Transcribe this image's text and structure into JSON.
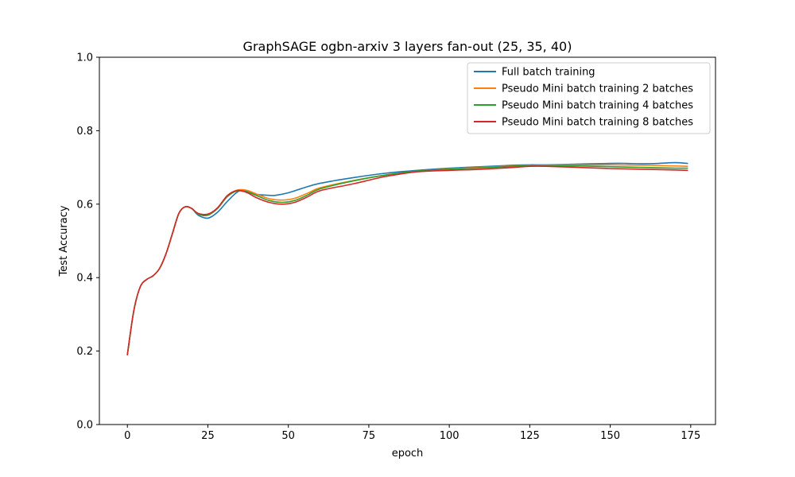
{
  "chart_data": {
    "type": "line",
    "title": "GraphSAGE ogbn-arxiv 3 layers fan-out (25, 35, 40)",
    "xlabel": "epoch",
    "ylabel": "Test Accuracy",
    "xlim": [
      -8.7,
      182.7
    ],
    "ylim": [
      0,
      1.0
    ],
    "xticks": [
      0,
      25,
      50,
      75,
      100,
      125,
      150,
      175
    ],
    "yticks": [
      0.0,
      0.2,
      0.4,
      0.6,
      0.8,
      1.0
    ],
    "xtick_labels": [
      "0",
      "25",
      "50",
      "75",
      "100",
      "125",
      "150",
      "175"
    ],
    "ytick_labels": [
      "0.0",
      "0.2",
      "0.4",
      "0.6",
      "0.8",
      "1.0"
    ],
    "grid": false,
    "legend_position": "upper right",
    "series": [
      {
        "name": "Full batch training",
        "color": "#1f77b4",
        "x": [
          0,
          2,
          4,
          6,
          8,
          10,
          12,
          14,
          16,
          18,
          20,
          22,
          25,
          28,
          31,
          34,
          36,
          40,
          44,
          46,
          50,
          55,
          60,
          70,
          80,
          90,
          100,
          110,
          120,
          125,
          130,
          140,
          150,
          155,
          160,
          165,
          170,
          174
        ],
        "y": [
          0.19,
          0.31,
          0.375,
          0.395,
          0.405,
          0.425,
          0.465,
          0.52,
          0.575,
          0.593,
          0.588,
          0.57,
          0.562,
          0.578,
          0.607,
          0.632,
          0.637,
          0.627,
          0.624,
          0.624,
          0.631,
          0.645,
          0.657,
          0.672,
          0.684,
          0.692,
          0.698,
          0.702,
          0.706,
          0.707,
          0.707,
          0.709,
          0.711,
          0.711,
          0.71,
          0.711,
          0.713,
          0.711
        ]
      },
      {
        "name": "Pseudo Mini batch training 2 batches",
        "color": "#ff7f0e",
        "x": [
          0,
          2,
          4,
          6,
          8,
          10,
          12,
          14,
          16,
          18,
          20,
          22,
          25,
          28,
          31,
          34,
          37,
          40,
          44,
          48,
          52,
          56,
          60,
          70,
          80,
          90,
          100,
          110,
          120,
          125,
          130,
          140,
          150,
          160,
          170,
          174
        ],
        "y": [
          0.19,
          0.31,
          0.375,
          0.395,
          0.405,
          0.425,
          0.465,
          0.52,
          0.575,
          0.593,
          0.588,
          0.573,
          0.57,
          0.59,
          0.622,
          0.638,
          0.638,
          0.628,
          0.615,
          0.611,
          0.616,
          0.63,
          0.645,
          0.664,
          0.679,
          0.689,
          0.696,
          0.7,
          0.704,
          0.705,
          0.706,
          0.707,
          0.707,
          0.706,
          0.704,
          0.703
        ]
      },
      {
        "name": "Pseudo Mini batch training 4 batches",
        "color": "#2ca02c",
        "x": [
          0,
          2,
          4,
          6,
          8,
          10,
          12,
          14,
          16,
          18,
          20,
          22,
          25,
          28,
          31,
          34,
          37,
          40,
          44,
          48,
          52,
          56,
          60,
          70,
          80,
          90,
          100,
          110,
          120,
          125,
          130,
          140,
          150,
          160,
          170,
          174
        ],
        "y": [
          0.19,
          0.31,
          0.375,
          0.395,
          0.405,
          0.425,
          0.465,
          0.52,
          0.575,
          0.593,
          0.588,
          0.573,
          0.57,
          0.588,
          0.62,
          0.636,
          0.634,
          0.624,
          0.61,
          0.605,
          0.61,
          0.625,
          0.642,
          0.663,
          0.679,
          0.69,
          0.695,
          0.699,
          0.703,
          0.704,
          0.705,
          0.704,
          0.702,
          0.7,
          0.698,
          0.698
        ]
      },
      {
        "name": "Pseudo Mini batch training 8 batches",
        "color": "#d62728",
        "x": [
          0,
          2,
          4,
          6,
          8,
          10,
          12,
          14,
          16,
          18,
          20,
          22,
          25,
          28,
          31,
          34,
          37,
          40,
          44,
          48,
          52,
          56,
          60,
          70,
          80,
          90,
          100,
          110,
          120,
          125,
          130,
          140,
          150,
          160,
          170,
          174
        ],
        "y": [
          0.19,
          0.31,
          0.375,
          0.395,
          0.405,
          0.425,
          0.465,
          0.52,
          0.575,
          0.593,
          0.588,
          0.575,
          0.573,
          0.59,
          0.623,
          0.637,
          0.632,
          0.618,
          0.605,
          0.6,
          0.605,
          0.62,
          0.637,
          0.655,
          0.675,
          0.688,
          0.692,
          0.695,
          0.7,
          0.703,
          0.703,
          0.7,
          0.697,
          0.695,
          0.693,
          0.692
        ]
      }
    ]
  }
}
